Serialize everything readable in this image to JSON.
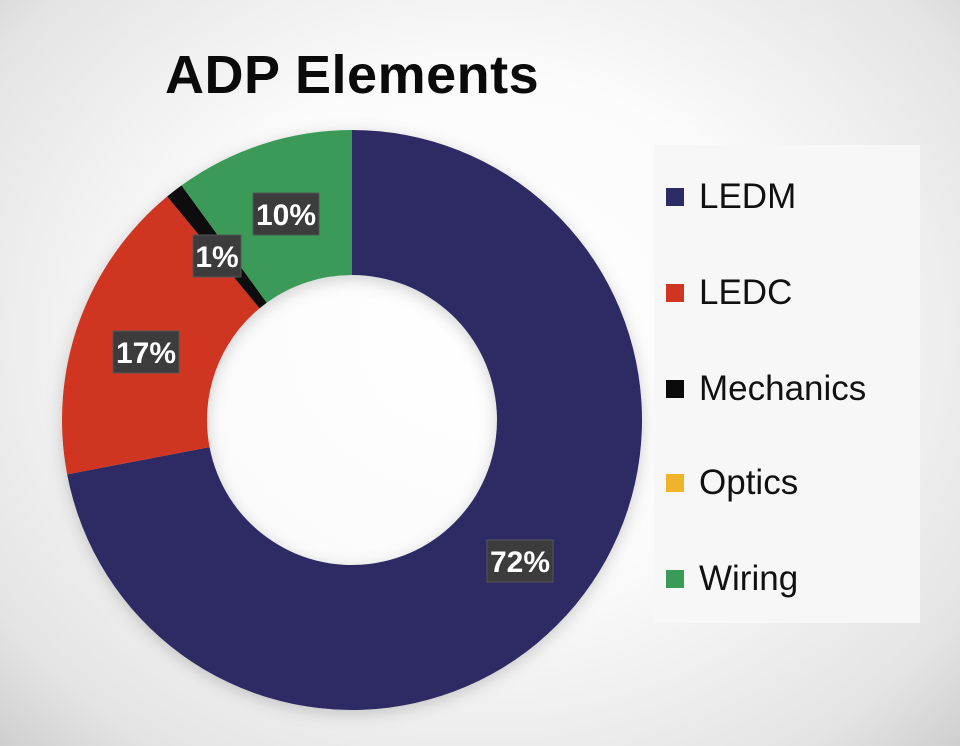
{
  "chart_data": {
    "type": "pie",
    "title": "ADP Elements",
    "donut": true,
    "legend_position": "right",
    "slices": [
      {
        "name": "LEDM",
        "value": 72,
        "label": "72%",
        "color": "#2d2b63"
      },
      {
        "name": "LEDC",
        "value": 17,
        "label": "17%",
        "color": "#d03521"
      },
      {
        "name": "Mechanics",
        "value": 1,
        "label": "1%",
        "color": "#0a0a0a"
      },
      {
        "name": "Optics",
        "value": 0,
        "label": "",
        "color": "#f0b42b"
      },
      {
        "name": "Wiring",
        "value": 10,
        "label": "10%",
        "color": "#3a9a58"
      }
    ]
  }
}
